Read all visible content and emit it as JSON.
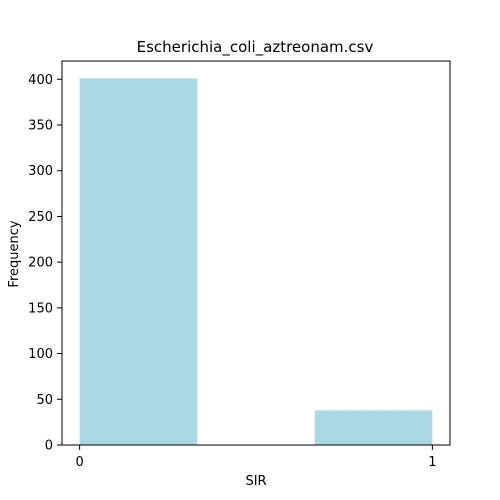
{
  "chart_data": {
    "type": "bar",
    "title": "Escherichia_coli_aztreonam.csv",
    "xlabel": "SIR",
    "ylabel": "Frequency",
    "bins": [
      {
        "start": 0.0,
        "end": 0.3333,
        "count": 401
      },
      {
        "start": 0.6667,
        "end": 1.0,
        "count": 38
      }
    ],
    "xlim": [
      -0.05,
      1.05
    ],
    "ylim": [
      0,
      420
    ],
    "xticks": [
      0,
      1
    ],
    "yticks": [
      0,
      50,
      100,
      150,
      200,
      250,
      300,
      350,
      400
    ],
    "grid": false,
    "legend": "none",
    "bar_color": "#add8e6"
  }
}
